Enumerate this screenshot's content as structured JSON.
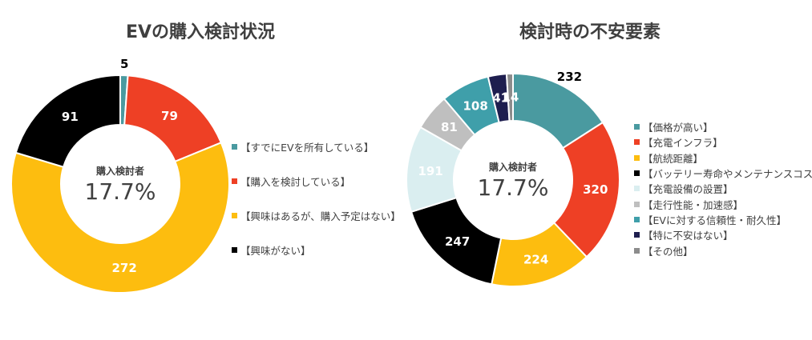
{
  "chart_data": [
    {
      "type": "pie",
      "title": "EVの購入検討状況",
      "center_label": "購入検討者",
      "center_value": "17.7%",
      "categories": [
        "【すでにEVを所有している】",
        "【購入を検討している】",
        "【興味はあるが、購入予定はない】",
        "【興味がない】"
      ],
      "values": [
        5,
        79,
        272,
        91
      ],
      "colors": [
        "#4a9aa0",
        "#ee4025",
        "#fdbd0f",
        "#000000"
      ],
      "label_colors": [
        "#000000",
        "#ffffff",
        "#ffffff",
        "#ffffff"
      ],
      "outside_labels": [
        true,
        false,
        false,
        false
      ],
      "legend_position": "right"
    },
    {
      "type": "pie",
      "title": "検討時の不安要素",
      "center_label": "購入検討者",
      "center_value": "17.7%",
      "categories": [
        "【価格が高い】",
        "【充電インフラ】",
        "【航続距離】",
        "【バッテリー寿命やメンテナンスコスト】",
        "【充電設備の設置】",
        "【走行性能・加速感】",
        "【EVに対する信頼性・耐久性】",
        "【特に不安はない】",
        "【その他】"
      ],
      "values": [
        232,
        320,
        224,
        247,
        191,
        81,
        108,
        41,
        14
      ],
      "colors": [
        "#4a9aa0",
        "#ee4025",
        "#fdbd0f",
        "#000000",
        "#daeef0",
        "#bfbfbf",
        "#3f9faa",
        "#1e1e4f",
        "#8c8c8c"
      ],
      "label_colors": [
        "#000000",
        "#ffffff",
        "#ffffff",
        "#ffffff",
        "#ffffff",
        "#ffffff",
        "#ffffff",
        "#ffffff",
        "#ffffff"
      ],
      "outside_labels": [
        true,
        false,
        false,
        false,
        false,
        false,
        false,
        false,
        false
      ],
      "legend_position": "right"
    }
  ]
}
